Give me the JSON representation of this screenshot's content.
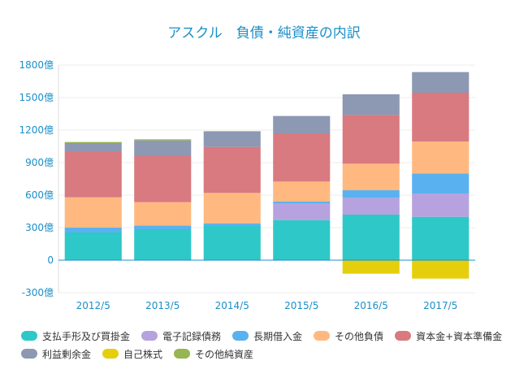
{
  "chart_data": {
    "type": "bar",
    "stacked": true,
    "title": "アスクル　負債・純資産の内訳",
    "categories": [
      "2012/5",
      "2013/5",
      "2014/5",
      "2015/5",
      "2016/5",
      "2017/5"
    ],
    "ytick_labels": [
      "-300億",
      "0",
      "300億",
      "600億",
      "900億",
      "1200億",
      "1500億",
      "1800億"
    ],
    "ylim": [
      -300,
      1800
    ],
    "yticks": [
      -300,
      0,
      300,
      600,
      900,
      1200,
      1500,
      1800
    ],
    "series": [
      {
        "name": "支払手形及び買掛金",
        "color": "#2ec8c8",
        "values": [
          255,
          285,
          315,
          370,
          420,
          400
        ]
      },
      {
        "name": "電子記録債務",
        "color": "#b6a2de",
        "values": [
          0,
          0,
          0,
          155,
          155,
          215
        ]
      },
      {
        "name": "長期借入金",
        "color": "#5ab1ef",
        "values": [
          45,
          35,
          25,
          15,
          70,
          185
        ]
      },
      {
        "name": "その他負債",
        "color": "#ffb980",
        "values": [
          280,
          215,
          280,
          185,
          245,
          295
        ]
      },
      {
        "name": "資本金+資本準備金",
        "color": "#d87a80",
        "values": [
          425,
          425,
          425,
          445,
          450,
          450
        ]
      },
      {
        "name": "利益剰余金",
        "color": "#8d98b3",
        "values": [
          75,
          145,
          140,
          160,
          190,
          190
        ]
      },
      {
        "name": "自己株式",
        "color": "#e5cf0d",
        "values": [
          0,
          0,
          0,
          0,
          -125,
          -170
        ]
      },
      {
        "name": "その他純資産",
        "color": "#97b552",
        "values": [
          10,
          10,
          5,
          0,
          0,
          0
        ]
      }
    ]
  }
}
